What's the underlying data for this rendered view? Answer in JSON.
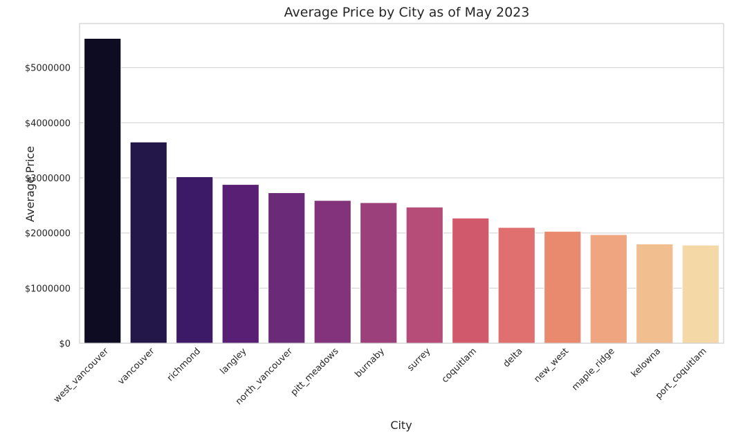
{
  "chart_data": {
    "type": "bar",
    "title": "Average Price by City as of May 2023",
    "xlabel": "City",
    "ylabel": "Average Price",
    "ylim": [
      0,
      5800000
    ],
    "grid": "horizontal",
    "y_ticks": [
      0,
      1000000,
      2000000,
      3000000,
      4000000,
      5000000
    ],
    "y_tick_labels": [
      "$0",
      "$1000000",
      "$2000000",
      "$3000000",
      "$4000000",
      "$5000000"
    ],
    "categories": [
      "west_vancouver",
      "vancouver",
      "richmond",
      "langley",
      "north_vancouver",
      "pitt_meadows",
      "burnaby",
      "surrey",
      "coquitlam",
      "delta",
      "new_west",
      "maple_ridge",
      "kelowna",
      "port_coquitlam"
    ],
    "values": [
      5530000,
      3650000,
      3020000,
      2880000,
      2730000,
      2590000,
      2550000,
      2470000,
      2270000,
      2100000,
      2030000,
      1970000,
      1800000,
      1780000
    ],
    "colors": [
      "#0e0c22",
      "#221748",
      "#3c1a67",
      "#581f74",
      "#6a2a78",
      "#83337b",
      "#9c407c",
      "#b54d78",
      "#d05a6c",
      "#e07070",
      "#e98a6f",
      "#efa57f",
      "#f1be8f",
      "#f4d9a7"
    ]
  }
}
